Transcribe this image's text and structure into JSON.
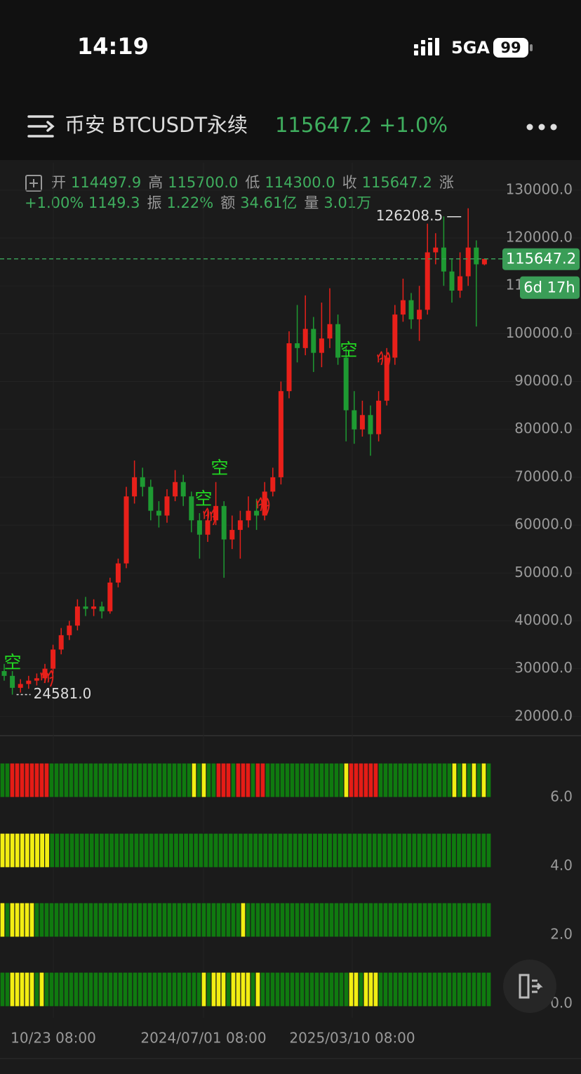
{
  "status_bar": {
    "time": "14:19",
    "network": "5GA",
    "battery": "99"
  },
  "header": {
    "title": "币安 BTCUSDT永续",
    "price": "115647.2",
    "change": "+1.0%"
  },
  "info": {
    "items": [
      {
        "label": "开",
        "value": "114497.9"
      },
      {
        "label": "高",
        "value": "115700.0"
      },
      {
        "label": "低",
        "value": "114300.0"
      },
      {
        "label": "收",
        "value": "115647.2"
      },
      {
        "label": "涨",
        "value": "+1.00% 1149.3"
      },
      {
        "label": "振",
        "value": "1.22%"
      },
      {
        "label": "额",
        "value": "34.61亿"
      },
      {
        "label": "量",
        "value": "3.01万"
      }
    ]
  },
  "chart_data": {
    "type": "candlestick",
    "open": [
      29500,
      28500,
      26000,
      26800,
      27500,
      28000,
      30000,
      34000,
      37000,
      39000,
      43000,
      42500,
      43000,
      42000,
      48000,
      52000,
      66000,
      70000,
      68000,
      63000,
      62000,
      66000,
      69000,
      66000,
      61000,
      58000,
      61000,
      64000,
      57000,
      59000,
      61000,
      63000,
      62000,
      67000,
      70000,
      88000,
      98000,
      97000,
      101000,
      96000,
      99000,
      102000,
      95000,
      84000,
      80000,
      83000,
      79000,
      86000,
      95000,
      104000,
      107000,
      103000,
      105000,
      117000,
      118000,
      113000,
      109000,
      112000,
      118000,
      114497.9
    ],
    "high": [
      31000,
      29500,
      27800,
      28500,
      29000,
      31000,
      35000,
      38500,
      40000,
      44500,
      45000,
      44500,
      44000,
      49000,
      53000,
      68000,
      73500,
      72000,
      69500,
      65000,
      67500,
      71500,
      70500,
      67000,
      62500,
      63000,
      69000,
      65000,
      62000,
      63000,
      66000,
      65500,
      69000,
      72000,
      90000,
      100500,
      106000,
      108000,
      103500,
      106500,
      109500,
      104000,
      97000,
      88000,
      86000,
      85000,
      88000,
      97000,
      106000,
      111500,
      108500,
      110000,
      123000,
      121000,
      124500,
      115500,
      117000,
      126208.5,
      119500,
      115700
    ],
    "low": [
      27500,
      24581,
      25000,
      25800,
      26500,
      27000,
      29000,
      33000,
      36000,
      38000,
      41000,
      41000,
      40500,
      41500,
      47000,
      51000,
      64500,
      66000,
      61000,
      59500,
      60500,
      65000,
      64000,
      58500,
      53000,
      56500,
      60000,
      49000,
      55000,
      53000,
      59500,
      59000,
      61000,
      66000,
      68500,
      86500,
      94000,
      95500,
      92000,
      93000,
      97000,
      93500,
      77500,
      77000,
      78500,
      74500,
      77500,
      85000,
      93500,
      102500,
      101000,
      98500,
      104000,
      114500,
      110000,
      106500,
      107500,
      110000,
      101500,
      114300
    ],
    "close": [
      28500,
      26000,
      26800,
      27500,
      28000,
      30000,
      34000,
      37000,
      39000,
      43000,
      42500,
      43000,
      42000,
      48000,
      52000,
      66000,
      70000,
      68000,
      63000,
      62000,
      66000,
      69000,
      66000,
      61000,
      58000,
      61000,
      64000,
      57000,
      59000,
      61000,
      63000,
      62000,
      67000,
      70000,
      88000,
      98000,
      97000,
      101000,
      96000,
      99000,
      102000,
      95000,
      84000,
      80000,
      83000,
      79000,
      86000,
      95000,
      104000,
      107000,
      103000,
      105000,
      117000,
      118000,
      113000,
      109000,
      112000,
      118000,
      114500,
      115647.2
    ],
    "up_color": "#e8201a",
    "down_color": "#1e9a32",
    "ylim": [
      16300,
      135700
    ],
    "yticks": [
      {
        "value": 130000,
        "label": "130000.0"
      },
      {
        "value": 120000,
        "label": "120000.0"
      },
      {
        "value": 110000,
        "label": "110000.0"
      },
      {
        "value": 100000,
        "label": "100000.0"
      },
      {
        "value": 90000,
        "label": "90000.0"
      },
      {
        "value": 80000,
        "label": "80000.0"
      },
      {
        "value": 70000,
        "label": "70000.0"
      },
      {
        "value": 60000,
        "label": "60000.0"
      },
      {
        "value": 50000,
        "label": "50000.0"
      },
      {
        "value": 40000,
        "label": "40000.0"
      },
      {
        "value": 30000,
        "label": "30000.0"
      },
      {
        "value": 20000,
        "label": "20000.0"
      }
    ],
    "xticks": [
      "10/23 08:00",
      "2024/07/01 08:00",
      "2025/03/10 08:00"
    ],
    "high_label": "126208.5",
    "low_label": "24581.0",
    "countdown": "6d 17h",
    "price_color": "#3a9d57",
    "signals": [
      {
        "label": "空",
        "color": "#22d722"
      },
      {
        "label": "多",
        "color": "#e8201a"
      },
      {
        "label": "空",
        "color": "#22d722"
      },
      {
        "label": "空",
        "color": "#22d722"
      },
      {
        "label": "多",
        "color": "#e8201a"
      },
      {
        "label": "多",
        "color": "#e8201a"
      },
      {
        "label": "空",
        "color": "#22d722"
      },
      {
        "label": "多",
        "color": "#e8201a"
      }
    ]
  },
  "indicator": {
    "colors": {
      "G": "#0f7a0f",
      "R": "#e51c16",
      "Y": "#f2ee12"
    },
    "rows": [
      "GGRRRRRRRRGGGGGGGGGGGGGGGGGGGGGGGGGGGGGYGYGGRRRGRRRGRRGGGGGGGGGGGGGGGGYRRRRRRGGGGGGGGGGGGGGGYGYGYGYG",
      "YYYYYYYYYYGGGGGGGGGGGGGGGGGGGGGGGGGGGGGGGGGGGGGGGGGGGGGGGGGGGGGGGGGGGGGGGGGGGGGGGGGGGGGGGGGGGGGGGGG",
      "YGYYYYYGGGGGGGGGGGGGGGGGGGGGGGGGGGGGGGGGGGGGGGGGGYGGGGGGGGGGGGGGGGGGGGGGGGGGGGGGGGGGGGGGGGGGGGGGGGGG",
      "GGYYYYYGYGGGGGGGGGGGGGGGGGGGGGGGGGGGGGGGGYGYYYGYYYYGYGGGGGGGGGGGGGGGGGGYYGYYYGGGGGGGGGGGGGGGGGGGGGGG"
    ],
    "ylim": [
      0,
      7
    ],
    "yticks": [
      {
        "value": 6,
        "label": "6.0"
      },
      {
        "value": 4,
        "label": "4.0"
      },
      {
        "value": 2,
        "label": "2.0"
      },
      {
        "value": 0,
        "label": "0.0"
      }
    ]
  }
}
